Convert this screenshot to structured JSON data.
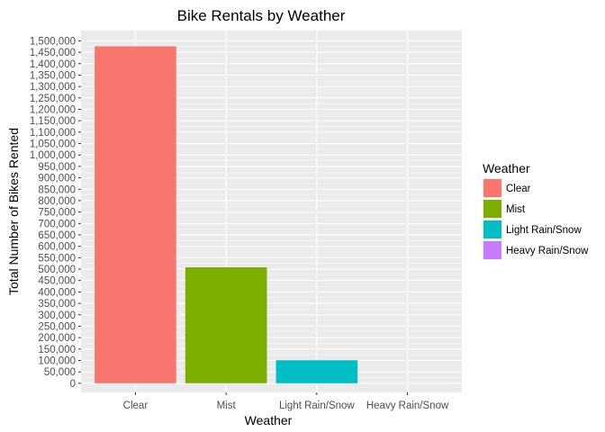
{
  "chart_data": {
    "type": "bar",
    "title": "Bike Rentals by Weather",
    "xlabel": "Weather",
    "ylabel": "Total Number of Bikes Rented",
    "categories": [
      "Clear",
      "Mist",
      "Light Rain/Snow",
      "Heavy Rain/Snow"
    ],
    "values": [
      1476000,
      508000,
      101000,
      223
    ],
    "colors": [
      "#F8766D",
      "#7CAE00",
      "#00BFC4",
      "#C77CFF"
    ],
    "ylim": [
      -40000,
      1545000
    ],
    "y_ticks": [
      0,
      50000,
      100000,
      150000,
      200000,
      250000,
      300000,
      350000,
      400000,
      450000,
      500000,
      550000,
      600000,
      650000,
      700000,
      750000,
      800000,
      850000,
      900000,
      950000,
      1000000,
      1050000,
      1100000,
      1150000,
      1200000,
      1250000,
      1300000,
      1350000,
      1400000,
      1450000,
      1500000
    ],
    "y_tick_labels": [
      "0",
      "50,000",
      "100,000",
      "150,000",
      "200,000",
      "250,000",
      "300,000",
      "350,000",
      "400,000",
      "450,000",
      "500,000",
      "550,000",
      "600,000",
      "650,000",
      "700,000",
      "750,000",
      "800,000",
      "850,000",
      "900,000",
      "950,000",
      "1,000,000",
      "1,050,000",
      "1,100,000",
      "1,150,000",
      "1,200,000",
      "1,250,000",
      "1,300,000",
      "1,350,000",
      "1,400,000",
      "1,450,000",
      "1,500,000"
    ],
    "grid": true,
    "panel_background": "#EBEBEB",
    "legend": {
      "title": "Weather",
      "position": "right",
      "entries": [
        "Clear",
        "Mist",
        "Light Rain/Snow",
        "Heavy Rain/Snow"
      ]
    }
  }
}
